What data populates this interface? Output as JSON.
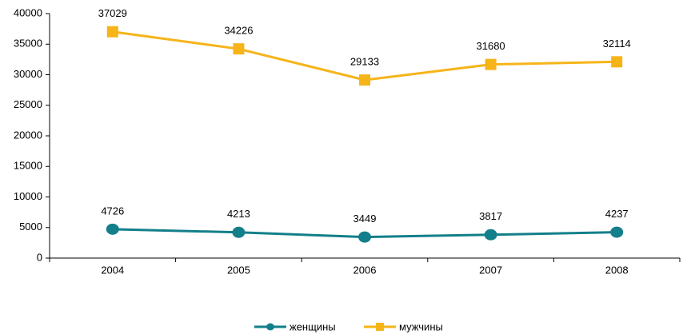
{
  "chart_data": {
    "type": "line",
    "categories": [
      "2004",
      "2005",
      "2006",
      "2007",
      "2008"
    ],
    "series": [
      {
        "name": "женщины",
        "color": "#137f8a",
        "marker": "circle",
        "values": [
          4726,
          4213,
          3449,
          3817,
          4237
        ]
      },
      {
        "name": "мужчины",
        "color": "#f6b419",
        "marker": "square",
        "values": [
          37029,
          34226,
          29133,
          31680,
          32114
        ]
      }
    ],
    "ylim": [
      0,
      40000
    ],
    "yticks": [
      0,
      5000,
      10000,
      15000,
      20000,
      25000,
      30000,
      35000,
      40000
    ],
    "grid": false,
    "legend": "bottom"
  }
}
